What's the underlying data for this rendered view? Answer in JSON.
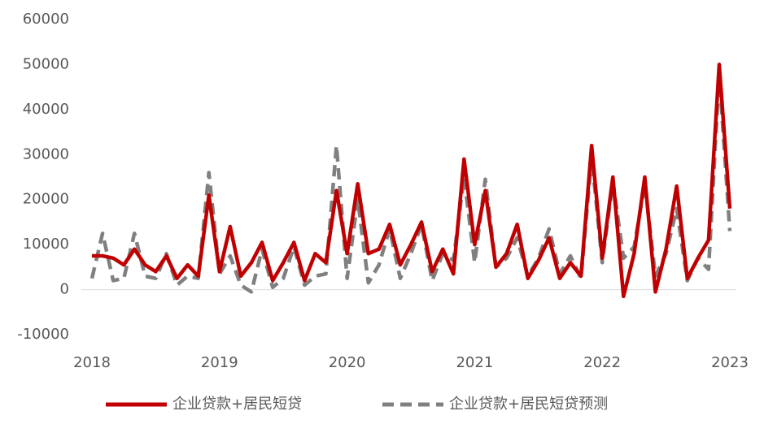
{
  "chart_data": {
    "type": "line",
    "x": [
      2018,
      2018.0833,
      2018.1667,
      2018.25,
      2018.3333,
      2018.4167,
      2018.5,
      2018.5833,
      2018.6667,
      2018.75,
      2018.8333,
      2018.9167,
      2019,
      2019.0833,
      2019.1667,
      2019.25,
      2019.3333,
      2019.4167,
      2019.5,
      2019.5833,
      2019.6667,
      2019.75,
      2019.8333,
      2019.9167,
      2020,
      2020.0833,
      2020.1667,
      2020.25,
      2020.3333,
      2020.4167,
      2020.5,
      2020.5833,
      2020.6667,
      2020.75,
      2020.8333,
      2020.9167,
      2021,
      2021.0833,
      2021.1667,
      2021.25,
      2021.3333,
      2021.4167,
      2021.5,
      2021.5833,
      2021.6667,
      2021.75,
      2021.8333,
      2021.9167,
      2022,
      2022.0833,
      2022.1667,
      2022.25,
      2022.3333,
      2022.4167,
      2022.5,
      2022.5833,
      2022.6667,
      2022.75,
      2022.8333,
      2022.9167,
      2023
    ],
    "series": [
      {
        "name": "企业贷款+居民短贷",
        "color": "#c00000",
        "dash": false,
        "values": [
          7500,
          7500,
          7000,
          5500,
          9000,
          5500,
          4000,
          7500,
          2500,
          5500,
          3000,
          21000,
          4000,
          14000,
          3000,
          6000,
          10500,
          2000,
          6000,
          10500,
          2000,
          8000,
          6000,
          22000,
          8000,
          23500,
          8000,
          9000,
          14500,
          5500,
          10000,
          15000,
          4000,
          9000,
          3500,
          29000,
          10000,
          22000,
          5000,
          8000,
          14500,
          2500,
          6500,
          11500,
          2500,
          6000,
          3000,
          32000,
          7000,
          25000,
          -1500,
          8000,
          25000,
          -500,
          9000,
          23000,
          2500,
          7000,
          11000,
          50000,
          18000
        ]
      },
      {
        "name": "企业贷款+居民短贷预测",
        "color": "#808080",
        "dash": true,
        "values": [
          2500,
          12500,
          2000,
          2500,
          12500,
          3000,
          2500,
          8000,
          1000,
          3000,
          2500,
          26000,
          3500,
          7500,
          1000,
          -500,
          9000,
          500,
          2500,
          9500,
          1000,
          3000,
          3500,
          32000,
          2500,
          20000,
          1500,
          5500,
          13500,
          2500,
          8000,
          14500,
          2000,
          8000,
          6500,
          25000,
          6000,
          24500,
          5000,
          7000,
          11500,
          3000,
          7000,
          13500,
          3500,
          7500,
          2500,
          29500,
          6000,
          24000,
          7000,
          9500,
          23500,
          3000,
          8000,
          18000,
          2000,
          7000,
          4500,
          48000,
          13000
        ]
      }
    ],
    "xlim": [
      2018,
      2023
    ],
    "xticks": [
      2018,
      2019,
      2020,
      2021,
      2022,
      2023
    ],
    "ylim": [
      -10000,
      60000
    ],
    "yticks": [
      -10000,
      0,
      10000,
      20000,
      30000,
      40000,
      50000,
      60000
    ],
    "grid": false,
    "legend": "bottom"
  }
}
